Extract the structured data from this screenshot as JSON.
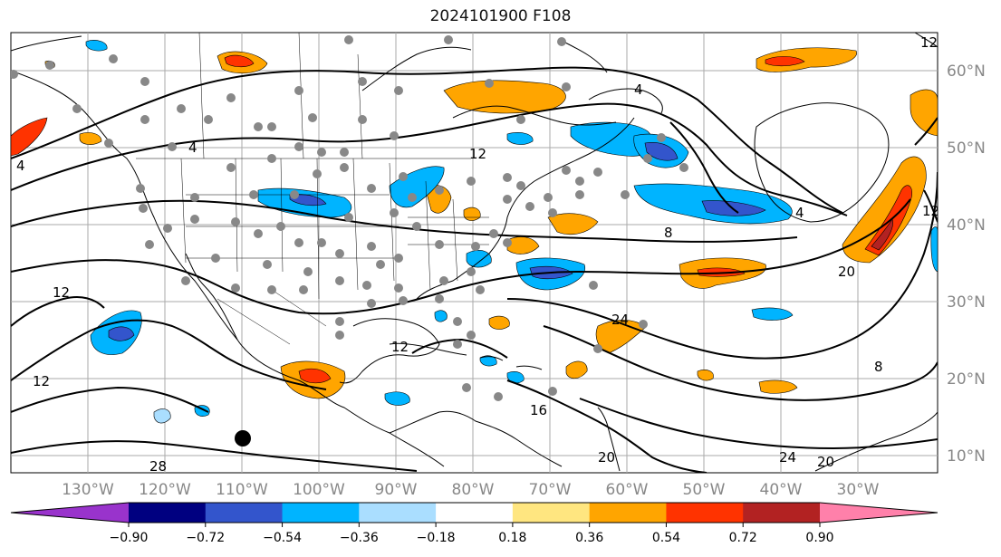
{
  "title": "2024101900 F108",
  "map": {
    "lon_labels": [
      "130°W",
      "120°W",
      "110°W",
      "100°W",
      "90°W",
      "80°W",
      "70°W",
      "60°W",
      "50°W",
      "40°W",
      "30°W"
    ],
    "lat_labels": [
      "60°N",
      "50°N",
      "40°N",
      "30°N",
      "20°N",
      "10°N"
    ],
    "contour_labels": [
      "4",
      "4",
      "4",
      "4",
      "8",
      "8",
      "12",
      "12",
      "12",
      "20",
      "20",
      "24",
      "24",
      "28",
      "16",
      "12",
      "12",
      "20",
      "12"
    ]
  },
  "colorbar": {
    "ticks": [
      "−0.90",
      "−0.72",
      "−0.54",
      "−0.36",
      "−0.18",
      "0.18",
      "0.36",
      "0.54",
      "0.72",
      "0.90"
    ],
    "colors": [
      "#9933cc",
      "#000080",
      "#3355cc",
      "#00b4ff",
      "#aadeff",
      "#ffffff",
      "#ffe680",
      "#ffa500",
      "#ff3300",
      "#b22222",
      "#ff80aa"
    ]
  }
}
